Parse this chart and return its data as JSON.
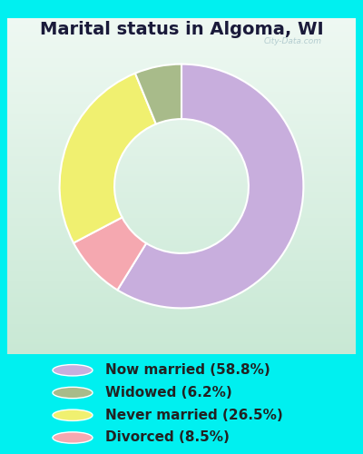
{
  "title": "Marital status in Algoma, WI",
  "slices": [
    58.8,
    6.2,
    26.5,
    8.5
  ],
  "colors": [
    "#c8aedd",
    "#a8bb8a",
    "#f0f070",
    "#f5a8b0"
  ],
  "labels": [
    "Now married (58.8%)",
    "Widowed (6.2%)",
    "Never married (26.5%)",
    "Divorced (8.5%)"
  ],
  "legend_colors": [
    "#c8aedd",
    "#a8bb8a",
    "#f0f070",
    "#f5a8b0"
  ],
  "watermark": "City-Data.com",
  "title_fontsize": 14,
  "legend_fontsize": 11,
  "cyan_bg": "#00f0f0",
  "chart_bg_tl": "#d8f0e0",
  "chart_bg_br": "#e8f5ec",
  "title_color": "#1a1a3a"
}
